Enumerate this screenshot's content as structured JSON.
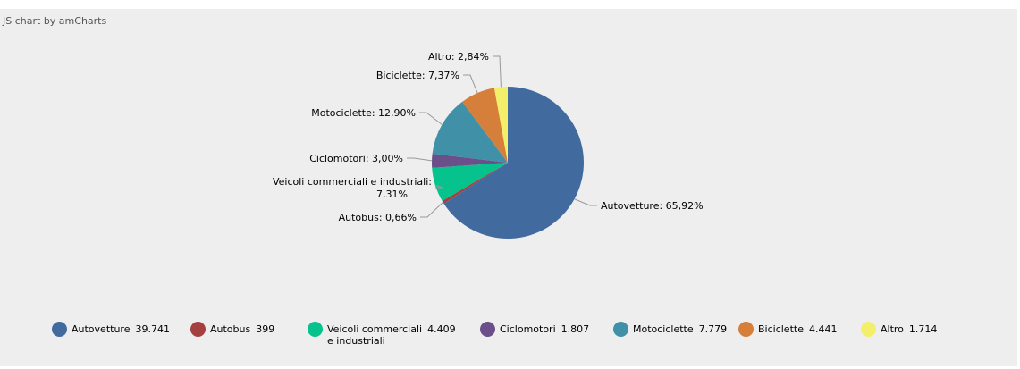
{
  "credit": "JS chart by amCharts",
  "chart_data": {
    "type": "pie",
    "slices": [
      {
        "name": "Autovetture",
        "value": 39741,
        "value_label": "39.741",
        "percent_label": "65,92%",
        "color": "#416b9f"
      },
      {
        "name": "Autobus",
        "value": 399,
        "value_label": "399",
        "percent_label": "0,66%",
        "color": "#a4403f"
      },
      {
        "name": "Veicoli commerciali e industriali",
        "name_lines": [
          "Veicoli commerciali",
          "e industriali"
        ],
        "value": 4409,
        "value_label": "4.409",
        "percent_label": "7,31%",
        "color": "#06c28d"
      },
      {
        "name": "Ciclomotori",
        "value": 1807,
        "value_label": "1.807",
        "percent_label": "3,00%",
        "color": "#6a4f8a"
      },
      {
        "name": "Motociclette",
        "value": 7779,
        "value_label": "7.779",
        "percent_label": "12,90%",
        "color": "#4090a8"
      },
      {
        "name": "Biciclette",
        "value": 4441,
        "value_label": "4.441",
        "percent_label": "7,37%",
        "color": "#d67f3a"
      },
      {
        "name": "Altro",
        "value": 1714,
        "value_label": "1.714",
        "percent_label": "2,84%",
        "color": "#f3ef6a"
      }
    ],
    "legend_position": "bottom"
  }
}
